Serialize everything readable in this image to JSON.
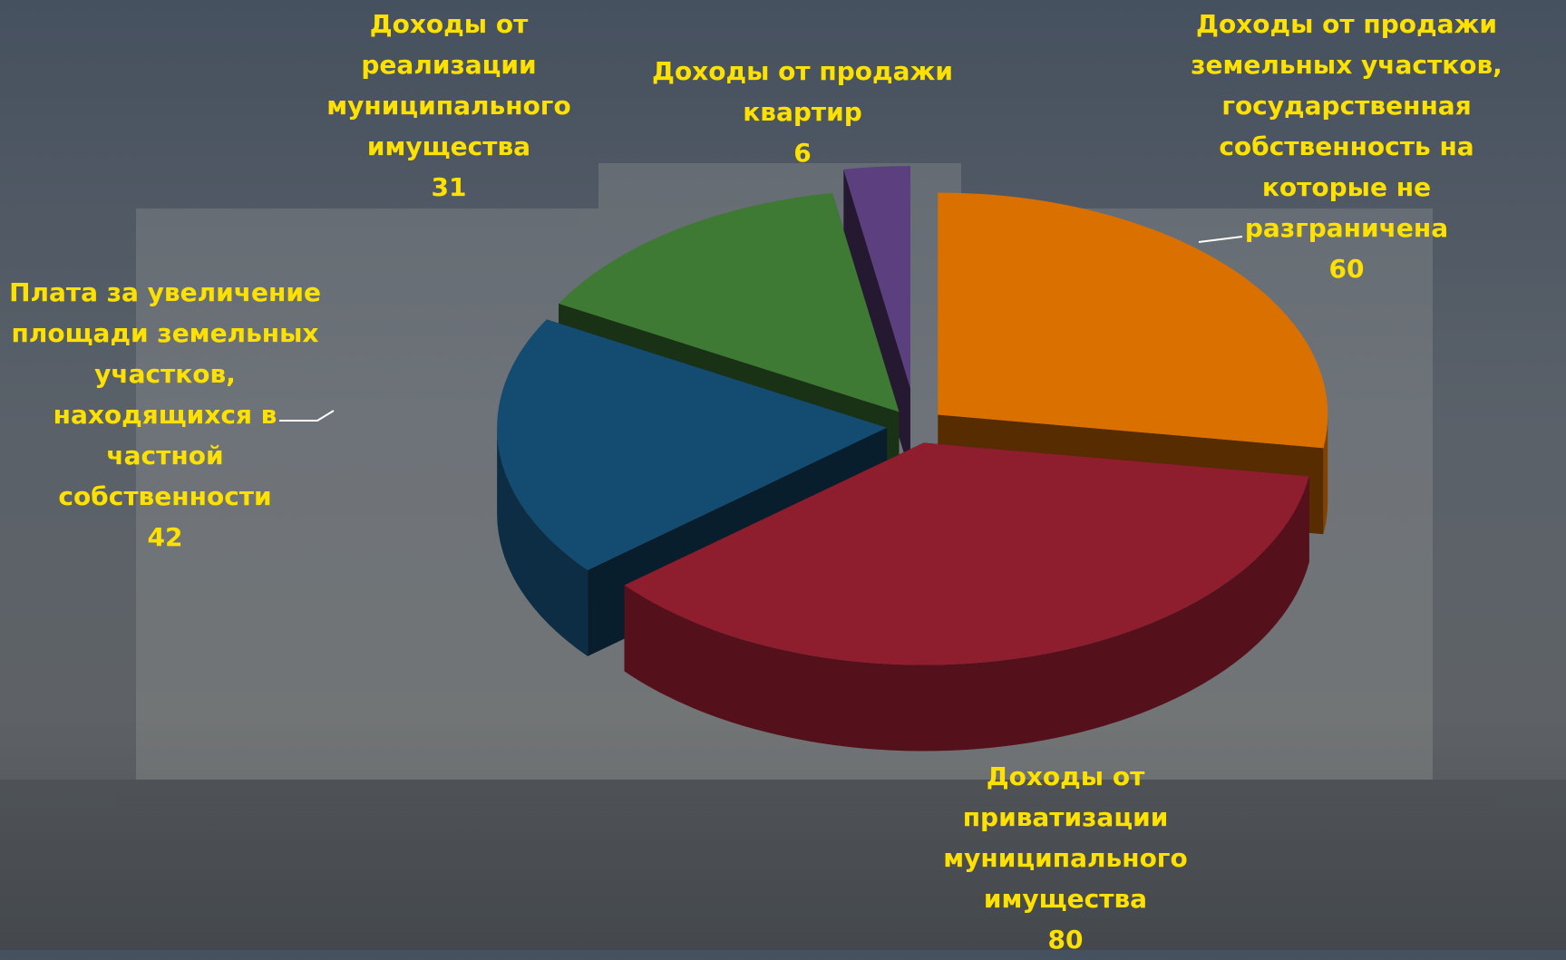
{
  "chart_data": {
    "type": "pie3d",
    "categories": [
      "Доходы от продажи земельных участков, государственная собственность на которые не разграничена",
      "Доходы от приватизации муниципального имущества",
      "Плата за увеличение площади земельных участков, находящихся в частной собственности",
      "Доходы от реализации муниципального имущества",
      "Доходы от продажи квартир"
    ],
    "values": [
      60,
      80,
      42,
      31,
      6
    ],
    "colors": [
      "#d97000",
      "#8e1d2d",
      "#144b70",
      "#3e7a33",
      "#5c3f7e"
    ]
  }
}
